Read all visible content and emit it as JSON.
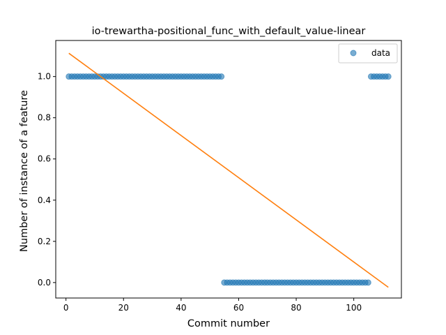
{
  "chart_data": {
    "type": "scatter",
    "title": "io-trewartha-positional_func_with_default_value-linear",
    "xlabel": "Commit number",
    "ylabel": "Number of instance of a feature",
    "xlim": [
      -3.55,
      116.55
    ],
    "ylim": [
      -0.075,
      1.175
    ],
    "xticks": [
      0,
      20,
      40,
      60,
      80,
      100
    ],
    "yticks": [
      0.0,
      0.2,
      0.4,
      0.6,
      0.8,
      1.0
    ],
    "xtick_labels": [
      "0",
      "20",
      "40",
      "60",
      "80",
      "100"
    ],
    "ytick_labels": [
      "0.0",
      "0.2",
      "0.4",
      "0.6",
      "0.8",
      "1.0"
    ],
    "grid": false,
    "legend": {
      "placement": "top-right",
      "entries": [
        "data"
      ]
    },
    "colors": {
      "data": "#1f77b4",
      "fit": "#ff7f0e"
    },
    "series": [
      {
        "name": "data",
        "kind": "scatter",
        "segments": [
          {
            "x_start": 1,
            "x_end": 54,
            "y": 1
          },
          {
            "x_start": 55,
            "x_end": 105,
            "y": 0
          },
          {
            "x_start": 106,
            "x_end": 112,
            "y": 1
          }
        ]
      },
      {
        "kind": "line",
        "x": [
          1,
          112
        ],
        "y": [
          1.113,
          -0.023
        ]
      }
    ]
  }
}
